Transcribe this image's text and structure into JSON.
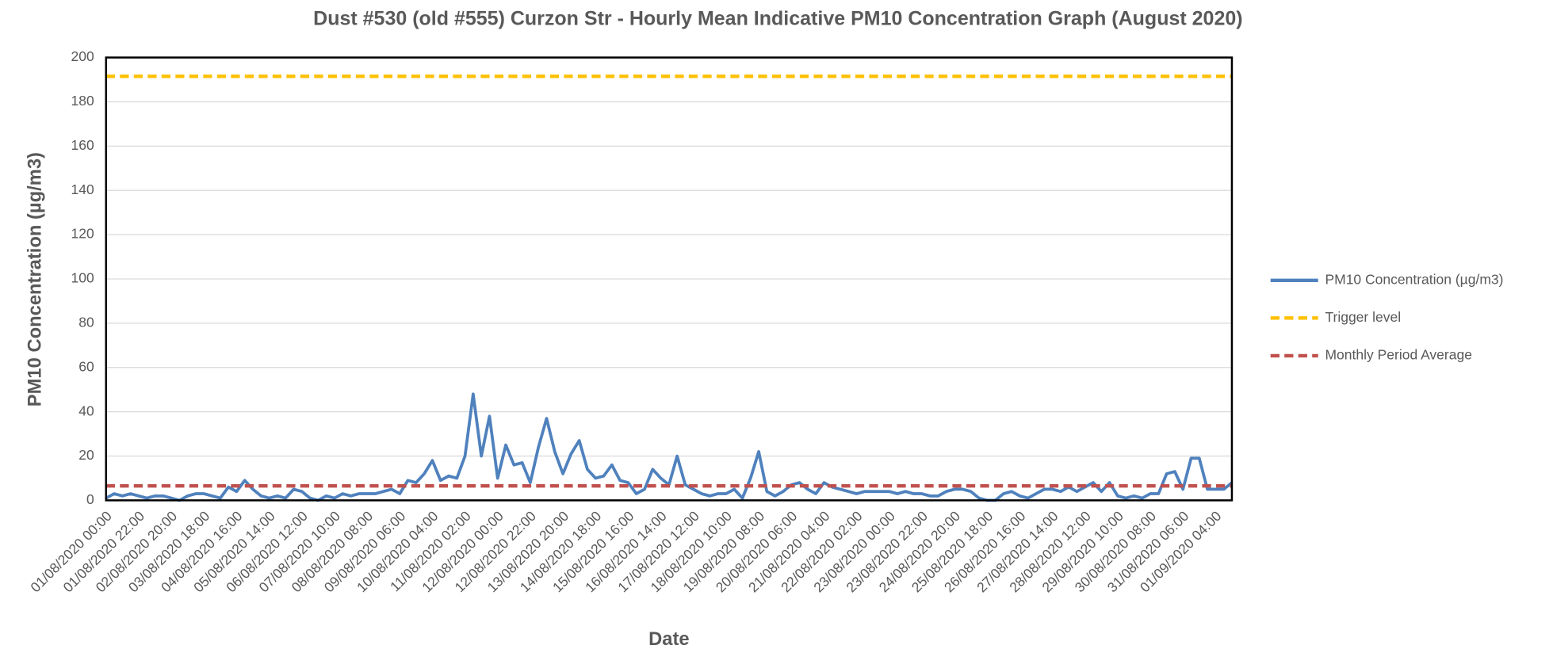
{
  "chart_data": {
    "type": "line",
    "title": "Dust #530 (old #555) Curzon Str - Hourly Mean Indicative PM10 Concentration Graph (August 2020)",
    "x_label": "Date",
    "y_label": "PM10 Concentration (µg/m3)",
    "ylim": [
      0,
      200
    ],
    "yticks": [
      0,
      20,
      40,
      60,
      80,
      100,
      120,
      140,
      160,
      180,
      200
    ],
    "grid": true,
    "legend": "right",
    "categories": [
      "01/08/2020 00:00",
      null,
      null,
      null,
      "01/08/2020 22:00",
      null,
      null,
      null,
      "02/08/2020 20:00",
      null,
      null,
      null,
      "03/08/2020 18:00",
      null,
      null,
      null,
      "04/08/2020 16:00",
      null,
      null,
      null,
      "05/08/2020 14:00",
      null,
      null,
      null,
      "06/08/2020 12:00",
      null,
      null,
      null,
      "07/08/2020 10:00",
      null,
      null,
      null,
      "08/08/2020 08:00",
      null,
      null,
      null,
      "09/08/2020 06:00",
      null,
      null,
      null,
      "10/08/2020 04:00",
      null,
      null,
      null,
      "11/08/2020 02:00",
      null,
      null,
      null,
      "12/08/2020 00:00",
      null,
      null,
      null,
      "12/08/2020 22:00",
      null,
      null,
      null,
      "13/08/2020 20:00",
      null,
      null,
      null,
      "14/08/2020 18:00",
      null,
      null,
      null,
      "15/08/2020 16:00",
      null,
      null,
      null,
      "16/08/2020 14:00",
      null,
      null,
      null,
      "17/08/2020 12:00",
      null,
      null,
      null,
      "18/08/2020 10:00",
      null,
      null,
      null,
      "19/08/2020 08:00",
      null,
      null,
      null,
      "20/08/2020 06:00",
      null,
      null,
      null,
      "21/08/2020 04:00",
      null,
      null,
      null,
      "22/08/2020 02:00",
      null,
      null,
      null,
      "23/08/2020 00:00",
      null,
      null,
      null,
      "23/08/2020 22:00",
      null,
      null,
      null,
      "24/08/2020 20:00",
      null,
      null,
      null,
      "25/08/2020 18:00",
      null,
      null,
      null,
      "26/08/2020 16:00",
      null,
      null,
      null,
      "27/08/2020 14:00",
      null,
      null,
      null,
      "28/08/2020 12:00",
      null,
      null,
      null,
      "29/08/2020 10:00",
      null,
      null,
      null,
      "30/08/2020 08:00",
      null,
      null,
      null,
      "31/08/2020 06:00",
      null,
      null,
      null,
      "01/09/2020 04:00",
      null,
      null
    ],
    "series": [
      {
        "name": "PM10 Concentration (µg/m3)",
        "color": "#4f81bd",
        "values": [
          1,
          3,
          2,
          3,
          2,
          1,
          2,
          2,
          1,
          0,
          2,
          3,
          3,
          2,
          1,
          6,
          4,
          9,
          5,
          2,
          1,
          2,
          1,
          5,
          4,
          1,
          0,
          2,
          1,
          3,
          2,
          3,
          3,
          3,
          4,
          5,
          3,
          9,
          8,
          12,
          18,
          9,
          11,
          10,
          20,
          48,
          20,
          38,
          10,
          25,
          16,
          17,
          8,
          24,
          37,
          22,
          12,
          21,
          27,
          14,
          10,
          11,
          16,
          9,
          8,
          3,
          5,
          14,
          10,
          7,
          20,
          7,
          5,
          3,
          2,
          3,
          3,
          5,
          1,
          10,
          22,
          4,
          2,
          4,
          7,
          8,
          5,
          3,
          8,
          6,
          5,
          4,
          3,
          4,
          4,
          4,
          4,
          3,
          4,
          3,
          3,
          2,
          2,
          4,
          5,
          5,
          4,
          1,
          0,
          0,
          3,
          4,
          2,
          1,
          3,
          5,
          5,
          4,
          6,
          4,
          6,
          8,
          4,
          8,
          2,
          1,
          2,
          1,
          3,
          3,
          12,
          13,
          5,
          19,
          19,
          5,
          5,
          5,
          8
        ]
      }
    ],
    "reference_lines": [
      {
        "name": "Trigger level",
        "color": "#ffc000",
        "value": 191.5
      },
      {
        "name": "Monthly Period Average",
        "color": "#c0504d",
        "value": 6.5
      }
    ]
  }
}
